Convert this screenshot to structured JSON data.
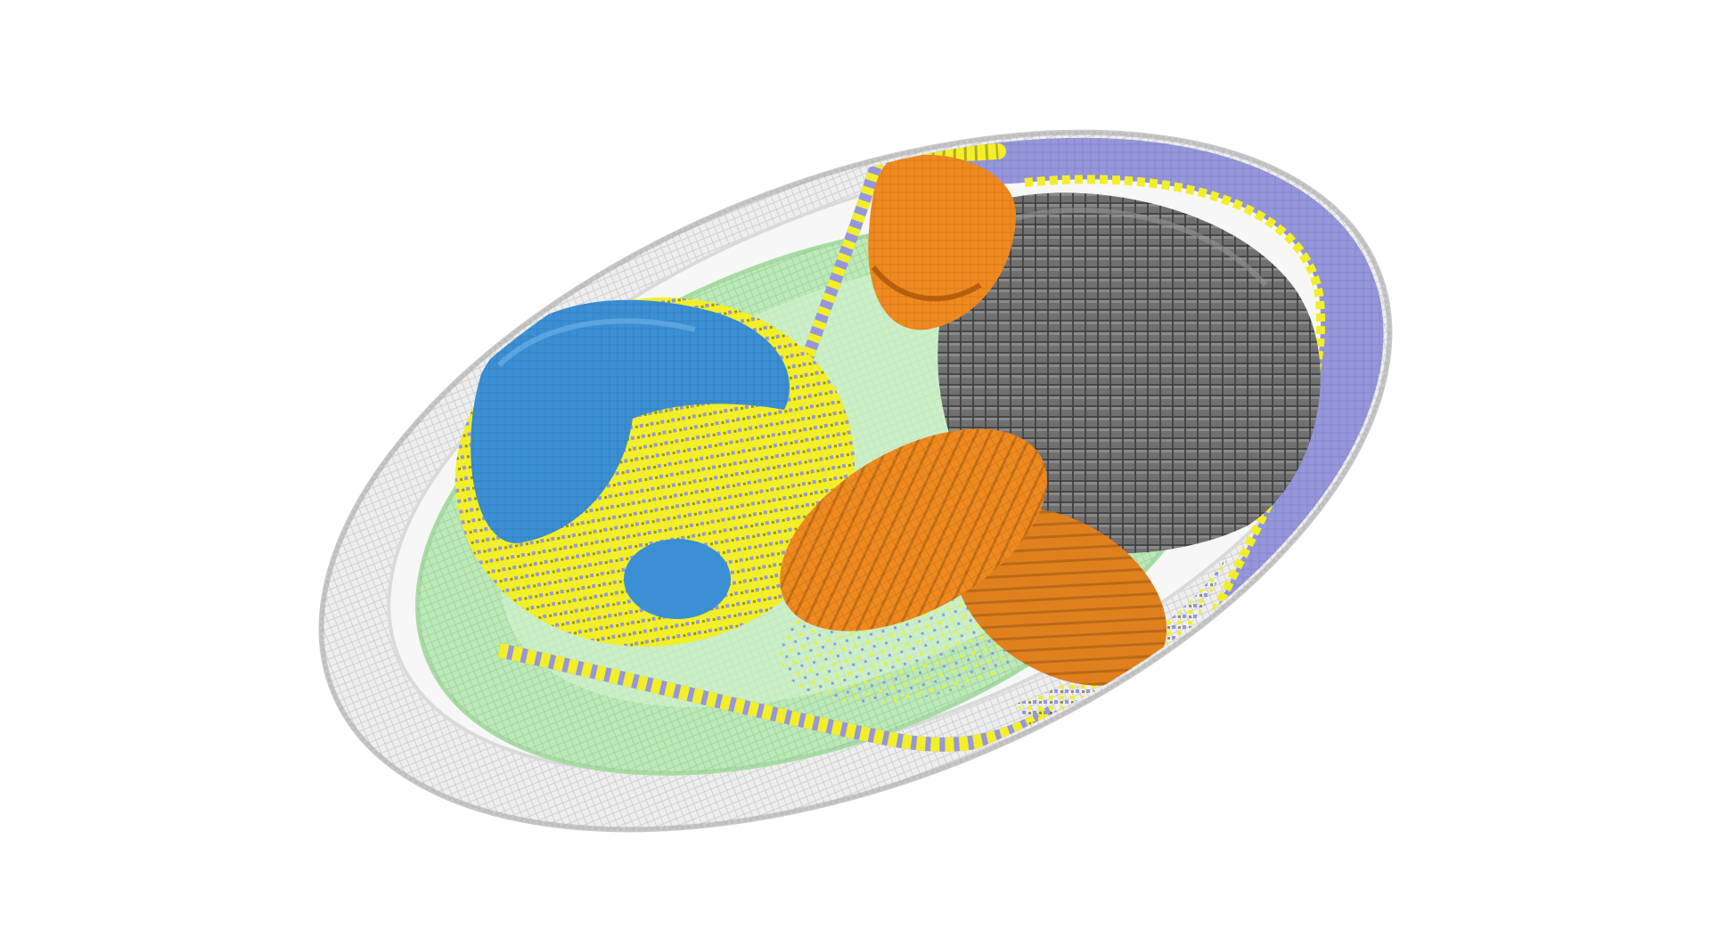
{
  "scene": {
    "background_color": "#ffffff",
    "render_style": "voxel",
    "view": "3d-voxel-cell-model",
    "components": [
      {
        "name": "outer-membrane",
        "color": "#d9d9d9"
      },
      {
        "name": "cytoplasm",
        "color": "#b9ebb5"
      },
      {
        "name": "violet-region",
        "color": "#9696dc"
      },
      {
        "name": "yellow-structures",
        "color": "#f2ef2a"
      },
      {
        "name": "blue-body",
        "color": "#3b8fd4"
      },
      {
        "name": "gray-body",
        "color": "#707070"
      },
      {
        "name": "orange-body-top",
        "color": "#f08a1f"
      },
      {
        "name": "orange-body-middle",
        "color": "#f08a1f"
      },
      {
        "name": "orange-body-bottom",
        "color": "#e0801d"
      }
    ]
  }
}
